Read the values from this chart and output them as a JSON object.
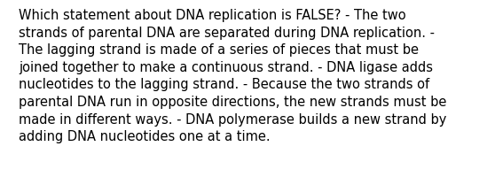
{
  "text": "Which statement about DNA replication is FALSE? - The two\nstrands of parental DNA are separated during DNA replication. -\nThe lagging strand is made of a series of pieces that must be\njoined together to make a continuous strand. - DNA ligase adds\nnucleotides to the lagging strand. - Because the two strands of\nparental DNA run in opposite directions, the new strands must be\nmade in different ways. - DNA polymerase builds a new strand by\nadding DNA nucleotides one at a time.",
  "background_color": "#ffffff",
  "text_color": "#000000",
  "font_size": 10.5,
  "font_family": "DejaVu Sans",
  "fig_width": 5.58,
  "fig_height": 2.09,
  "dpi": 100
}
